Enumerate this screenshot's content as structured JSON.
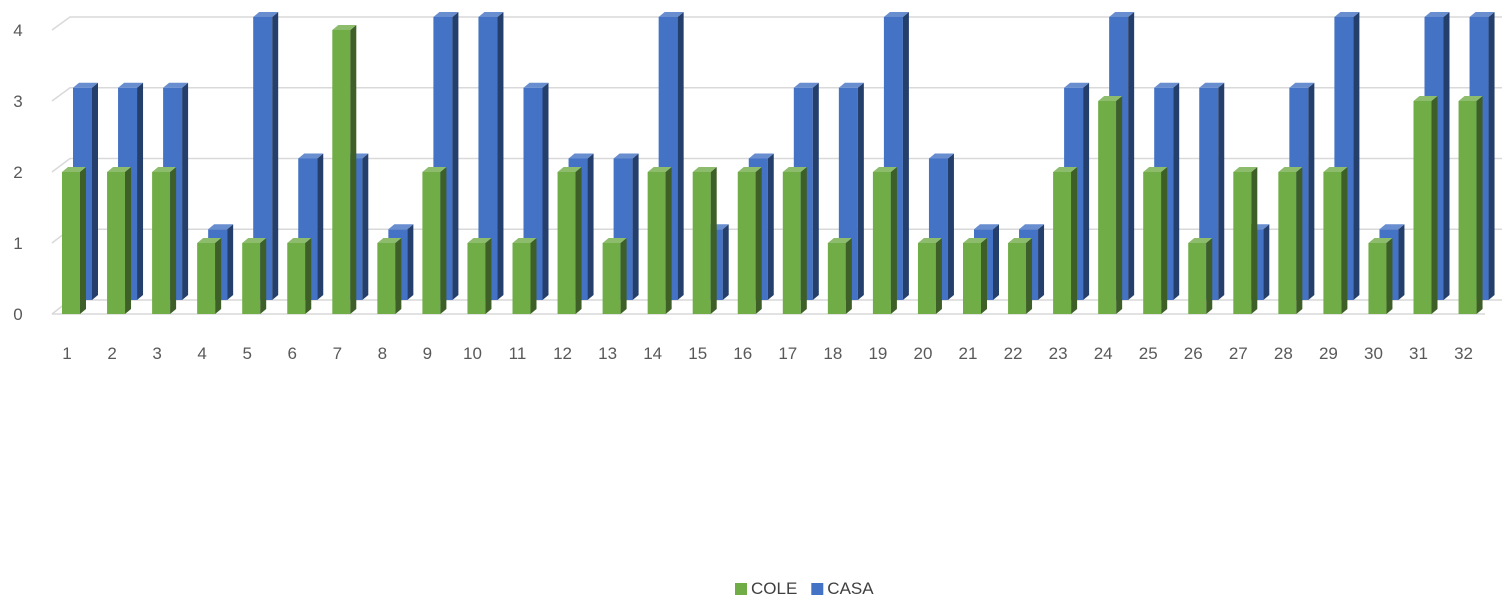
{
  "chart_data": {
    "type": "bar",
    "style": "3d-clustered-column",
    "categories": [
      "1",
      "2",
      "3",
      "4",
      "5",
      "6",
      "7",
      "8",
      "9",
      "10",
      "11",
      "12",
      "13",
      "14",
      "15",
      "16",
      "17",
      "18",
      "19",
      "20",
      "21",
      "22",
      "23",
      "24",
      "25",
      "26",
      "27",
      "28",
      "29",
      "30",
      "31",
      "32"
    ],
    "series": [
      {
        "name": "COLE",
        "color": "#70AD47",
        "values": [
          2,
          2,
          2,
          1,
          1,
          1,
          4,
          1,
          2,
          1,
          1,
          2,
          1,
          2,
          2,
          2,
          2,
          1,
          2,
          1,
          1,
          1,
          2,
          3,
          2,
          1,
          2,
          2,
          2,
          1,
          3,
          3
        ]
      },
      {
        "name": "CASA",
        "color": "#4472C4",
        "values": [
          3,
          3,
          3,
          1,
          4,
          2,
          2,
          1,
          4,
          4,
          3,
          2,
          2,
          4,
          1,
          2,
          3,
          3,
          4,
          2,
          1,
          1,
          3,
          4,
          3,
          3,
          1,
          3,
          4,
          1,
          4,
          4
        ]
      }
    ],
    "ylim": [
      0,
      4
    ],
    "yticks": [
      "0",
      "1",
      "2",
      "3",
      "4"
    ],
    "grid": true,
    "legend_position": "bottom"
  }
}
